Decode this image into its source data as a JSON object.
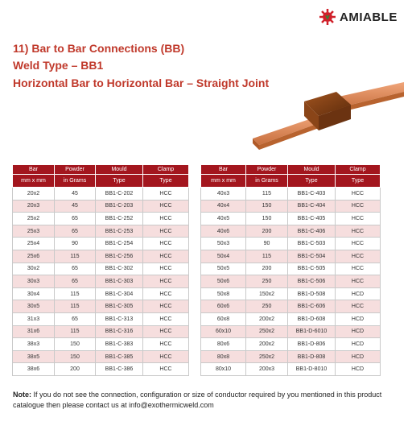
{
  "brand": {
    "name": "AMIABLE"
  },
  "headings": {
    "line1": "11) Bar to Bar Connections (BB)",
    "line2": "Weld Type – BB1",
    "line3": "Horizontal Bar to Horizontal Bar – Straight Joint"
  },
  "colors": {
    "accent": "#a3161e",
    "heading": "#c0392b",
    "row_shade": "#f6dede",
    "copper": "#d9855a",
    "joint": "#7a3c13"
  },
  "table": {
    "headers": [
      "Bar",
      "Powder",
      "Mould",
      "Clamp",
      "Bar",
      "Powder",
      "Mould",
      "Clamp"
    ],
    "subheaders": [
      "mm x mm",
      "in Grams",
      "Type",
      "Type",
      "mm x mm",
      "in Grams",
      "Type",
      "Type"
    ],
    "rows": [
      [
        "20x2",
        "45",
        "BB1-C-202",
        "HCC",
        "40x3",
        "115",
        "BB1-C-403",
        "HCC"
      ],
      [
        "20x3",
        "45",
        "BB1-C-203",
        "HCC",
        "40x4",
        "150",
        "BB1-C-404",
        "HCC"
      ],
      [
        "25x2",
        "65",
        "BB1-C-252",
        "HCC",
        "40x5",
        "150",
        "BB1-C-405",
        "HCC"
      ],
      [
        "25x3",
        "65",
        "BB1-C-253",
        "HCC",
        "40x6",
        "200",
        "BB1-C-406",
        "HCC"
      ],
      [
        "25x4",
        "90",
        "BB1-C-254",
        "HCC",
        "50x3",
        "90",
        "BB1-C-503",
        "HCC"
      ],
      [
        "25x6",
        "115",
        "BB1-C-256",
        "HCC",
        "50x4",
        "115",
        "BB1-C-504",
        "HCC"
      ],
      [
        "30x2",
        "65",
        "BB1-C-302",
        "HCC",
        "50x5",
        "200",
        "BB1-C-505",
        "HCC"
      ],
      [
        "30x3",
        "65",
        "BB1-C-303",
        "HCC",
        "50x6",
        "250",
        "BB1-C-506",
        "HCC"
      ],
      [
        "30x4",
        "115",
        "BB1-C-304",
        "HCC",
        "50x8",
        "150x2",
        "BB1-D-508",
        "HCD"
      ],
      [
        "30x5",
        "115",
        "BB1-C-305",
        "HCC",
        "60x6",
        "250",
        "BB1-C-606",
        "HCC"
      ],
      [
        "31x3",
        "65",
        "BB1-C-313",
        "HCC",
        "60x8",
        "200x2",
        "BB1-D-608",
        "HCD"
      ],
      [
        "31x6",
        "115",
        "BB1-C-316",
        "HCC",
        "60x10",
        "250x2",
        "BB1-D-6010",
        "HCD"
      ],
      [
        "38x3",
        "150",
        "BB1-C-383",
        "HCC",
        "80x6",
        "200x2",
        "BB1-D-806",
        "HCD"
      ],
      [
        "38x5",
        "150",
        "BB1-C-385",
        "HCC",
        "80x8",
        "250x2",
        "BB1-D-808",
        "HCD"
      ],
      [
        "38x6",
        "200",
        "BB1-C-386",
        "HCC",
        "80x10",
        "200x3",
        "BB1-D-8010",
        "HCD"
      ]
    ]
  },
  "note": {
    "label": "Note:",
    "text": " If you do not see the connection, configuration or size of conductor required by you mentioned in this product catalogue then please contact us at info@exothermicweld.com"
  }
}
